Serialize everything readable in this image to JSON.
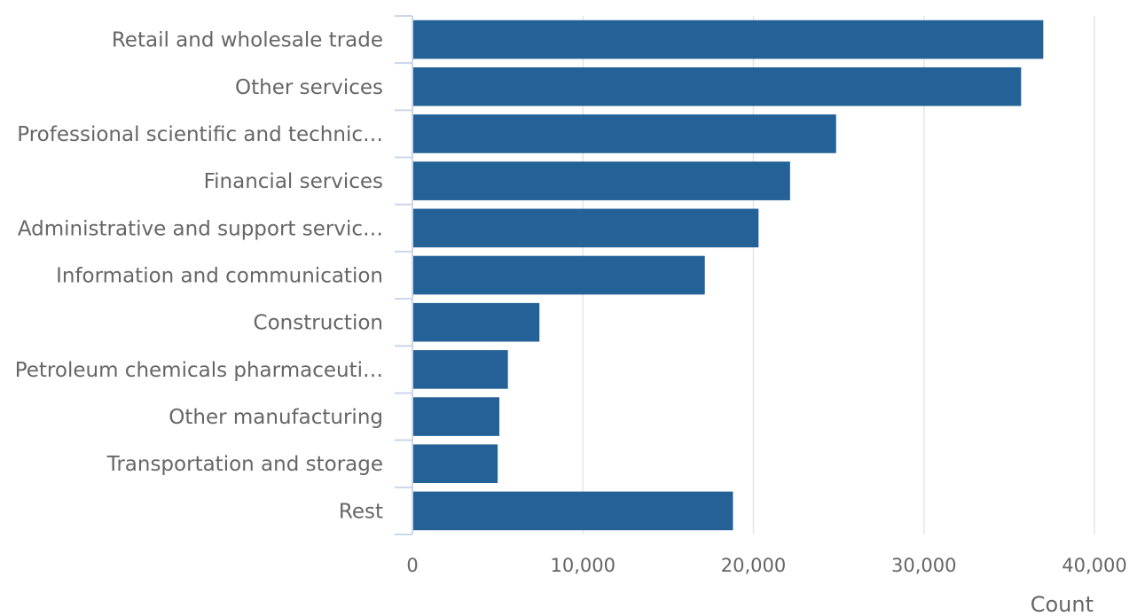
{
  "chart_data": {
    "type": "bar",
    "orientation": "horizontal",
    "categories": [
      "Retail and wholesale trade",
      "Other services",
      "Professional scientific and technic…",
      "Financial services",
      "Administrative and support servic…",
      "Information and communication",
      "Construction",
      "Petroleum chemicals pharmaceuti…",
      "Other manufacturing",
      "Transportation and storage",
      "Rest"
    ],
    "values": [
      37000,
      35700,
      24850,
      22150,
      20300,
      17150,
      7450,
      5600,
      5100,
      5000,
      18800
    ],
    "xlim": [
      0,
      40000
    ],
    "xticks": [
      0,
      10000,
      20000,
      30000,
      40000
    ],
    "xtick_labels": [
      "0",
      "10,000",
      "20,000",
      "30,000",
      "40,000"
    ],
    "xlabel": "Count",
    "ylabel": "",
    "title": "",
    "grid": "vertical",
    "legend": "none",
    "bar_color": "#236196",
    "grid_color": "#e6e6e6",
    "axis_color": "#ccd6eb",
    "text_color": "#666666"
  }
}
